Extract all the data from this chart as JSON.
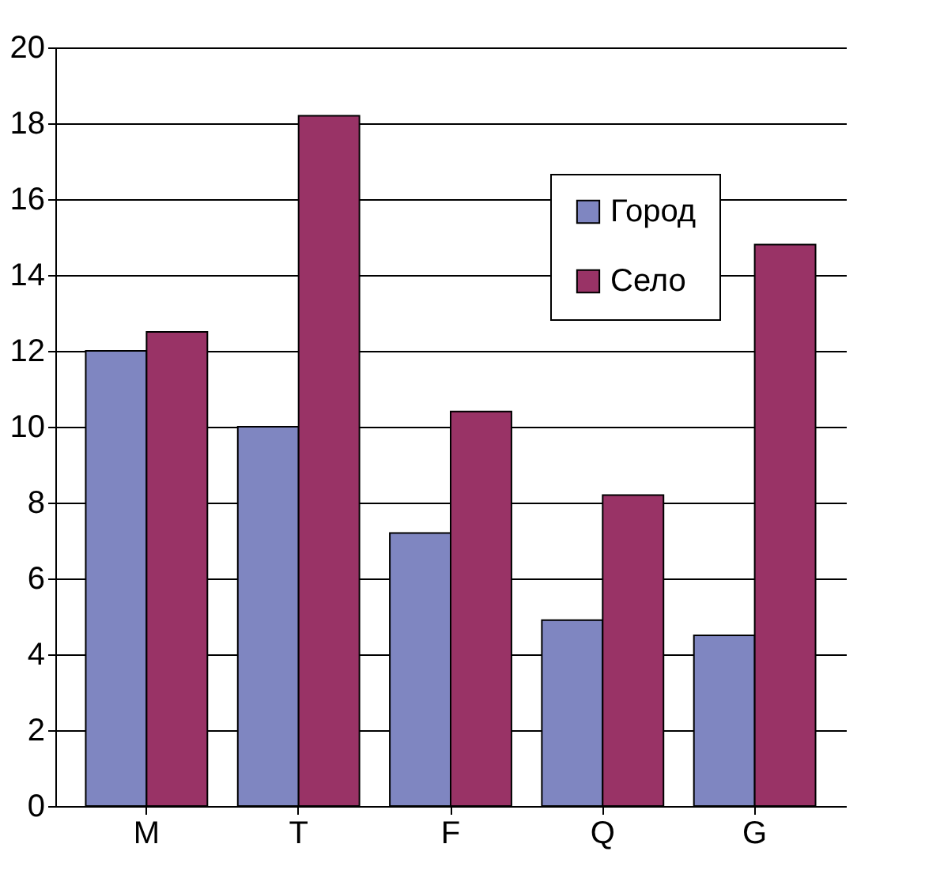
{
  "chart_data": {
    "type": "bar",
    "categories": [
      "M",
      "T",
      "F",
      "Q",
      "G"
    ],
    "series": [
      {
        "name": "Город",
        "color": "#7f86c1",
        "values": [
          12,
          10,
          7.2,
          4.9,
          4.5
        ]
      },
      {
        "name": "Село",
        "color": "#993366",
        "values": [
          12.5,
          18.2,
          10.4,
          8.2,
          14.8
        ]
      }
    ],
    "ylim": [
      0,
      20
    ],
    "yticks": [
      0,
      2,
      4,
      6,
      8,
      10,
      12,
      14,
      16,
      18,
      20
    ],
    "grid": "y",
    "legend": "top right"
  }
}
